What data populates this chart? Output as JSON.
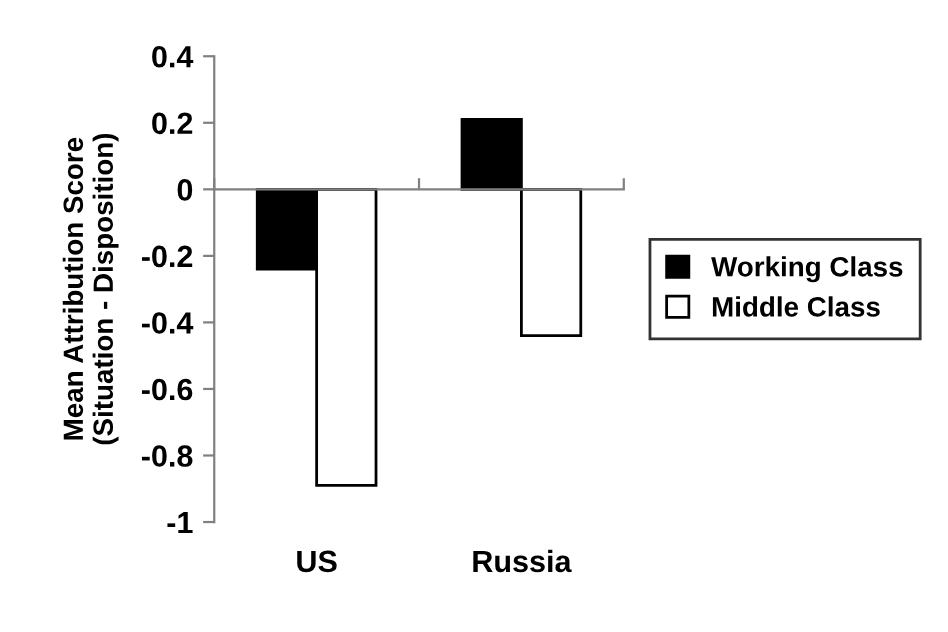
{
  "chart_data": {
    "type": "bar",
    "ylabel": "Mean Attribution Score\n(Situation - Disposition)",
    "categories": [
      "US",
      "Russia"
    ],
    "series": [
      {
        "name": "Working Class",
        "color": "#000000",
        "values": [
          -0.24,
          0.21
        ]
      },
      {
        "name": "Middle Class",
        "color": "#ffffff",
        "values": [
          -0.89,
          -0.44
        ]
      }
    ],
    "ylim": [
      -1,
      0.4
    ],
    "yticks": [
      -1,
      -0.8,
      -0.6,
      -0.4,
      -0.2,
      0,
      0.2,
      0.4
    ],
    "legend": "right"
  }
}
